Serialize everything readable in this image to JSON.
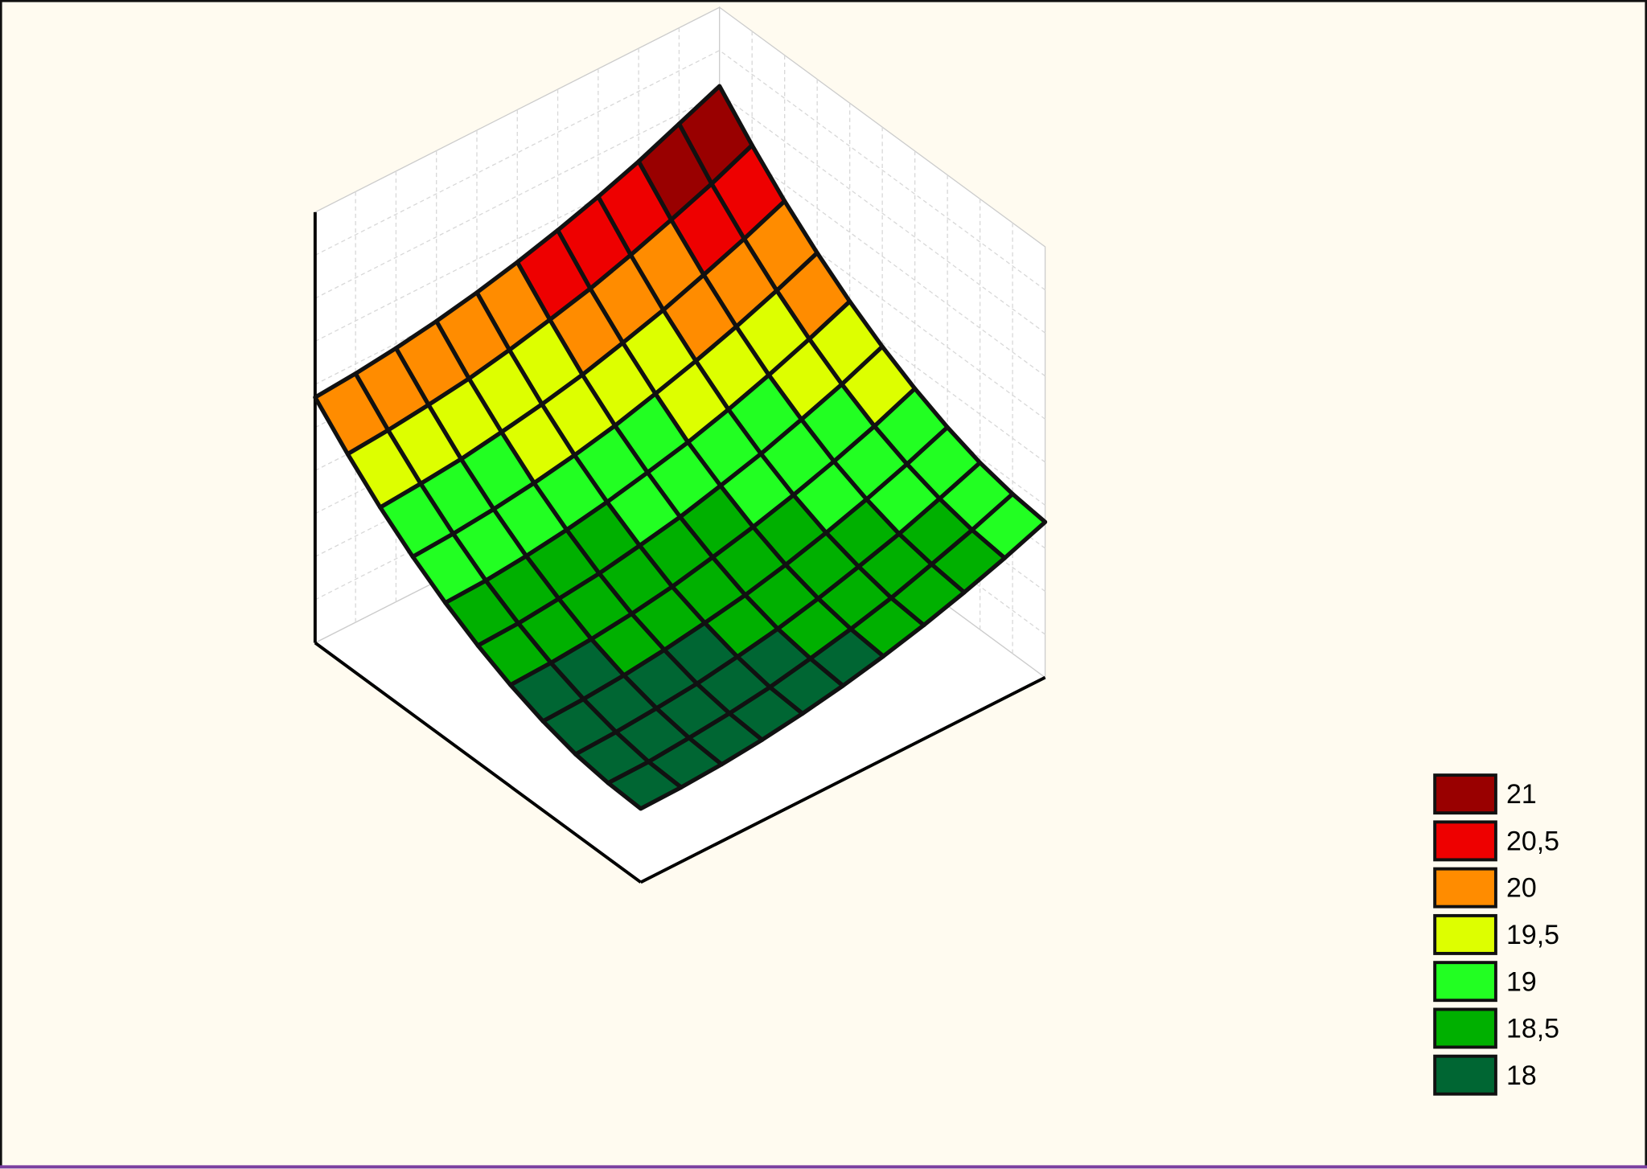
{
  "chart_data": {
    "type": "surface",
    "z": [
      [
        17.9,
        17.91,
        17.94,
        17.99,
        18.06,
        18.15,
        18.26,
        18.39,
        18.54,
        18.71,
        18.9
      ],
      [
        17.92,
        17.93,
        17.97,
        18.02,
        18.09,
        18.19,
        18.3,
        18.43,
        18.59,
        18.76,
        18.95
      ],
      [
        17.98,
        18.0,
        18.04,
        18.09,
        18.17,
        18.26,
        18.38,
        18.52,
        18.67,
        18.85,
        19.04
      ],
      [
        18.09,
        18.11,
        18.15,
        18.21,
        18.29,
        18.38,
        18.5,
        18.64,
        18.8,
        18.98,
        19.18
      ],
      [
        18.24,
        18.26,
        18.3,
        18.36,
        18.44,
        18.55,
        18.67,
        18.81,
        18.97,
        19.15,
        19.36
      ],
      [
        18.43,
        18.45,
        18.5,
        18.56,
        18.65,
        18.75,
        18.88,
        19.02,
        19.19,
        19.37,
        19.58
      ],
      [
        18.66,
        18.68,
        18.73,
        18.8,
        18.89,
        19.0,
        19.12,
        19.27,
        19.44,
        19.63,
        19.84
      ],
      [
        18.93,
        18.96,
        19.01,
        19.08,
        19.17,
        19.28,
        19.42,
        19.57,
        19.74,
        19.93,
        20.14
      ],
      [
        19.24,
        19.28,
        19.33,
        19.41,
        19.5,
        19.61,
        19.75,
        19.9,
        20.08,
        20.27,
        20.48
      ],
      [
        19.6,
        19.64,
        19.7,
        19.77,
        19.87,
        19.99,
        20.12,
        20.28,
        20.46,
        20.65,
        20.87
      ],
      [
        20.0,
        20.04,
        20.1,
        20.18,
        20.28,
        20.4,
        20.54,
        20.7,
        20.88,
        21.09,
        21.3
      ]
    ],
    "levels": [
      21,
      {
        "value": 20.5,
        "label": "20,5"
      },
      20,
      {
        "value": 19.5,
        "label": "19,5"
      },
      19,
      {
        "value": 18.5,
        "label": "18,5"
      },
      18
    ],
    "level_colors": [
      "#990000",
      "#ee0000",
      "#ff8c00",
      "#ddff00",
      "#22ff22",
      "#00b000",
      "#006633"
    ]
  }
}
